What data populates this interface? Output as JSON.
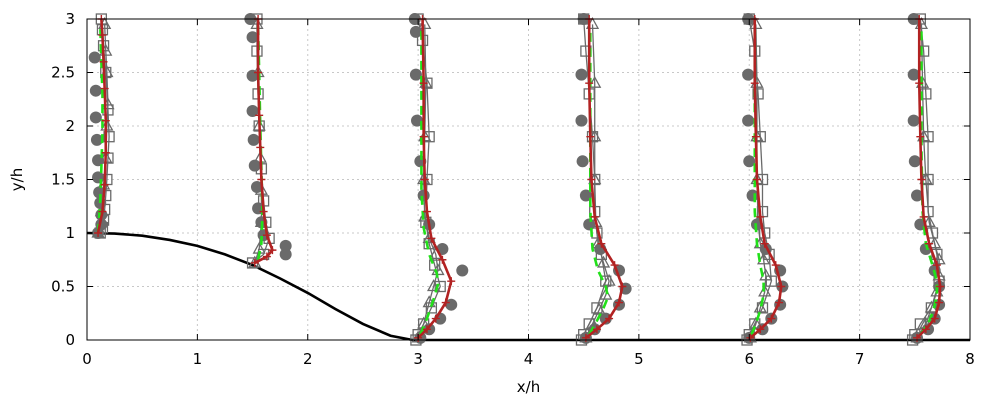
{
  "chart_data": {
    "type": "line",
    "title": "",
    "xlabel": "x/h",
    "ylabel": "y/h",
    "xlim": [
      0,
      8
    ],
    "ylim": [
      0,
      3
    ],
    "xticks": [
      "0",
      "1",
      "2",
      "3",
      "4",
      "5",
      "6",
      "7",
      "8"
    ],
    "yticks": [
      "0",
      "0.5",
      "1",
      "1.5",
      "2",
      "2.5",
      "3"
    ],
    "grid": true,
    "profile_stations_x": [
      0.1,
      1.5,
      3.0,
      4.5,
      6.0,
      7.5
    ],
    "hill_profile": {
      "x": [
        0.0,
        0.25,
        0.5,
        0.75,
        1.0,
        1.25,
        1.5,
        1.75,
        2.0,
        2.25,
        2.5,
        2.75,
        2.95,
        3.2,
        8.0
      ],
      "y": [
        1.0,
        0.995,
        0.975,
        0.935,
        0.88,
        0.8,
        0.7,
        0.575,
        0.44,
        0.29,
        0.15,
        0.04,
        0.0,
        0.0,
        0.0
      ]
    },
    "series": [
      {
        "marker": "open-square",
        "profiles": [
          {
            "x": [
              0.12,
              0.14,
              0.15,
              0.16,
              0.17,
              0.18,
              0.19,
              0.2,
              0.19,
              0.17,
              0.15,
              0.14,
              0.13
            ],
            "y": [
              1.0,
              1.05,
              1.12,
              1.22,
              1.35,
              1.5,
              1.7,
              1.9,
              2.15,
              2.5,
              2.75,
              2.9,
              3.0
            ]
          },
          {
            "x": [
              1.5,
              1.6,
              1.65,
              1.62,
              1.6,
              1.58,
              1.56,
              1.55,
              1.54,
              1.54
            ],
            "y": [
              0.72,
              0.8,
              0.95,
              1.1,
              1.3,
              1.6,
              2.0,
              2.3,
              2.7,
              3.0
            ]
          },
          {
            "x": [
              2.98,
              3.0,
              3.05,
              3.12,
              3.2,
              3.15,
              3.1,
              3.07,
              3.08,
              3.1,
              3.08,
              3.04,
              3.0
            ],
            "y": [
              0.0,
              0.05,
              0.15,
              0.3,
              0.5,
              0.7,
              0.9,
              1.1,
              1.5,
              1.9,
              2.4,
              2.8,
              3.0
            ]
          },
          {
            "x": [
              4.48,
              4.5,
              4.55,
              4.62,
              4.7,
              4.66,
              4.62,
              4.6,
              4.6,
              4.58,
              4.55,
              4.52,
              4.5
            ],
            "y": [
              0.0,
              0.05,
              0.15,
              0.3,
              0.55,
              0.8,
              1.0,
              1.2,
              1.5,
              1.9,
              2.3,
              2.7,
              3.0
            ]
          },
          {
            "x": [
              5.98,
              6.0,
              6.05,
              6.12,
              6.2,
              6.18,
              6.14,
              6.12,
              6.12,
              6.1,
              6.08,
              6.05,
              6.0
            ],
            "y": [
              0.0,
              0.05,
              0.15,
              0.3,
              0.55,
              0.8,
              1.0,
              1.2,
              1.5,
              1.9,
              2.3,
              2.7,
              3.0
            ]
          },
          {
            "x": [
              7.48,
              7.5,
              7.55,
              7.65,
              7.72,
              7.7,
              7.66,
              7.62,
              7.62,
              7.62,
              7.6,
              7.58,
              7.55
            ],
            "y": [
              0.0,
              0.05,
              0.15,
              0.3,
              0.55,
              0.8,
              1.0,
              1.2,
              1.5,
              1.9,
              2.3,
              2.7,
              3.0
            ]
          }
        ]
      },
      {
        "marker": "filled-circle",
        "profiles": [
          {
            "x": [
              0.1,
              0.13,
              0.13,
              0.12,
              0.11,
              0.1,
              0.1,
              0.09,
              0.08,
              0.08,
              0.07
            ],
            "y": [
              1.0,
              1.08,
              1.17,
              1.28,
              1.38,
              1.52,
              1.68,
              1.87,
              2.08,
              2.33,
              2.64
            ]
          },
          {
            "x": [
              1.8,
              1.8,
              1.6,
              1.58,
              1.55,
              1.54,
              1.52,
              1.51,
              1.5,
              1.5,
              1.5,
              1.48
            ],
            "y": [
              0.8,
              0.88,
              0.98,
              1.1,
              1.23,
              1.43,
              1.63,
              1.87,
              2.14,
              2.47,
              2.83,
              3.0
            ]
          },
          {
            "x": [
              3.02,
              3.1,
              3.2,
              3.3,
              3.4,
              3.22,
              3.1,
              3.05,
              3.02,
              2.99,
              2.98,
              2.98,
              2.97
            ],
            "y": [
              0.02,
              0.1,
              0.2,
              0.33,
              0.65,
              0.85,
              1.08,
              1.35,
              1.67,
              2.05,
              2.48,
              2.88,
              3.0
            ]
          },
          {
            "x": [
              4.52,
              4.6,
              4.7,
              4.82,
              4.88,
              4.82,
              4.65,
              4.55,
              4.52,
              4.49,
              4.48,
              4.48,
              4.5
            ],
            "y": [
              0.02,
              0.1,
              0.2,
              0.33,
              0.48,
              0.65,
              0.85,
              1.08,
              1.35,
              1.67,
              2.05,
              2.48,
              3.0
            ]
          },
          {
            "x": [
              6.0,
              6.12,
              6.2,
              6.28,
              6.3,
              6.28,
              6.15,
              6.07,
              6.03,
              6.0,
              5.99,
              5.99,
              5.99
            ],
            "y": [
              0.02,
              0.1,
              0.2,
              0.33,
              0.5,
              0.65,
              0.85,
              1.08,
              1.35,
              1.67,
              2.05,
              2.48,
              3.0
            ]
          },
          {
            "x": [
              7.52,
              7.62,
              7.68,
              7.72,
              7.72,
              7.68,
              7.6,
              7.55,
              7.52,
              7.5,
              7.49,
              7.49,
              7.49
            ],
            "y": [
              0.02,
              0.1,
              0.2,
              0.33,
              0.5,
              0.65,
              0.85,
              1.08,
              1.35,
              1.67,
              2.05,
              2.48,
              3.0
            ]
          }
        ]
      },
      {
        "marker": "open-triangle",
        "profiles": [
          {
            "x": [
              0.1,
              0.13,
              0.15,
              0.17,
              0.18,
              0.19,
              0.18,
              0.17,
              0.16
            ],
            "y": [
              1.0,
              1.2,
              1.45,
              1.7,
              2.0,
              2.2,
              2.5,
              2.7,
              2.95
            ]
          },
          {
            "x": [
              1.52,
              1.56,
              1.58,
              1.58,
              1.57,
              1.56,
              1.55,
              1.54
            ],
            "y": [
              0.72,
              0.85,
              1.1,
              1.4,
              1.7,
              2.0,
              2.5,
              2.95
            ]
          },
          {
            "x": [
              3.0,
              3.05,
              3.1,
              3.14,
              3.18,
              3.16,
              3.1,
              3.06,
              3.05,
              3.06,
              3.07,
              3.06
            ],
            "y": [
              0.02,
              0.15,
              0.35,
              0.5,
              0.65,
              0.8,
              0.95,
              1.15,
              1.5,
              1.9,
              2.4,
              2.95
            ]
          },
          {
            "x": [
              4.52,
              4.58,
              4.64,
              4.7,
              4.73,
              4.68,
              4.63,
              4.61,
              4.6,
              4.6,
              4.6,
              4.58
            ],
            "y": [
              0.02,
              0.15,
              0.28,
              0.42,
              0.55,
              0.72,
              0.9,
              1.1,
              1.5,
              1.9,
              2.4,
              2.95
            ]
          },
          {
            "x": [
              6.01,
              6.06,
              6.1,
              6.14,
              6.15,
              6.13,
              6.1,
              6.08,
              6.07,
              6.07,
              6.07,
              6.06
            ],
            "y": [
              0.02,
              0.15,
              0.3,
              0.45,
              0.6,
              0.75,
              0.9,
              1.1,
              1.5,
              1.9,
              2.4,
              2.95
            ]
          },
          {
            "x": [
              7.52,
              7.6,
              7.65,
              7.7,
              7.72,
              7.72,
              7.68,
              7.63,
              7.6,
              7.58,
              7.57,
              7.56
            ],
            "y": [
              0.02,
              0.15,
              0.3,
              0.45,
              0.6,
              0.75,
              0.9,
              1.1,
              1.5,
              1.9,
              2.4,
              2.95
            ]
          }
        ]
      },
      {
        "marker": "red-plus-solid",
        "profiles": [
          {
            "x": [
              0.1,
              0.14,
              0.16,
              0.17,
              0.17,
              0.16,
              0.15,
              0.14,
              0.13
            ],
            "y": [
              1.0,
              1.2,
              1.45,
              1.75,
              2.05,
              2.35,
              2.6,
              2.85,
              3.0
            ]
          },
          {
            "x": [
              1.52,
              1.63,
              1.68,
              1.63,
              1.6,
              1.58,
              1.57,
              1.56,
              1.55,
              1.55
            ],
            "y": [
              0.72,
              0.78,
              0.84,
              0.98,
              1.2,
              1.5,
              1.8,
              2.1,
              2.5,
              3.0
            ]
          },
          {
            "x": [
              3.0,
              3.08,
              3.16,
              3.25,
              3.3,
              3.22,
              3.12,
              3.08,
              3.06,
              3.05,
              3.05,
              3.04
            ],
            "y": [
              0.02,
              0.1,
              0.2,
              0.35,
              0.55,
              0.75,
              0.95,
              1.2,
              1.5,
              1.9,
              2.4,
              3.0
            ]
          },
          {
            "x": [
              4.52,
              4.62,
              4.73,
              4.82,
              4.85,
              4.78,
              4.66,
              4.6,
              4.57,
              4.56,
              4.55,
              4.55
            ],
            "y": [
              0.02,
              0.1,
              0.2,
              0.35,
              0.5,
              0.7,
              0.9,
              1.15,
              1.5,
              1.9,
              2.4,
              3.0
            ]
          },
          {
            "x": [
              6.01,
              6.1,
              6.2,
              6.27,
              6.29,
              6.24,
              6.14,
              6.1,
              6.07,
              6.06,
              6.05,
              6.05
            ],
            "y": [
              0.02,
              0.1,
              0.2,
              0.35,
              0.5,
              0.7,
              0.9,
              1.15,
              1.5,
              1.9,
              2.4,
              3.0
            ]
          },
          {
            "x": [
              7.52,
              7.6,
              7.68,
              7.72,
              7.73,
              7.7,
              7.63,
              7.58,
              7.56,
              7.55,
              7.54,
              7.54
            ],
            "y": [
              0.02,
              0.1,
              0.2,
              0.35,
              0.5,
              0.7,
              0.9,
              1.15,
              1.5,
              1.9,
              2.4,
              3.0
            ]
          }
        ]
      },
      {
        "marker": "green-dashed",
        "profiles": [
          {
            "x": [
              0.1,
              0.12,
              0.13,
              0.14,
              0.14,
              0.13,
              0.12
            ],
            "y": [
              1.0,
              1.3,
              1.6,
              1.95,
              2.3,
              2.6,
              2.95
            ]
          },
          {
            "x": [
              1.55,
              1.58,
              1.59,
              1.58,
              1.57,
              1.56,
              1.55
            ],
            "y": [
              0.75,
              0.9,
              1.2,
              1.6,
              2.0,
              2.5,
              2.95
            ]
          },
          {
            "x": [
              3.02,
              3.08,
              3.14,
              3.18,
              3.17,
              3.1,
              3.05,
              3.03,
              3.03,
              3.03
            ],
            "y": [
              0.05,
              0.2,
              0.38,
              0.52,
              0.62,
              0.8,
              1.05,
              1.4,
              1.9,
              2.9
            ]
          },
          {
            "x": [
              4.55,
              4.62,
              4.68,
              4.72,
              4.7,
              4.63,
              4.58,
              4.56,
              4.56,
              4.56
            ],
            "y": [
              0.05,
              0.18,
              0.3,
              0.4,
              0.5,
              0.65,
              0.85,
              1.2,
              1.8,
              2.9
            ]
          },
          {
            "x": [
              6.02,
              6.06,
              6.1,
              6.13,
              6.13,
              6.1,
              6.07,
              6.05,
              6.05,
              6.05
            ],
            "y": [
              0.05,
              0.15,
              0.28,
              0.42,
              0.55,
              0.7,
              0.9,
              1.2,
              1.8,
              2.9
            ]
          },
          {
            "x": [
              7.55,
              7.62,
              7.67,
              7.7,
              7.7,
              7.66,
              7.6,
              7.57,
              7.56,
              7.56
            ],
            "y": [
              0.05,
              0.15,
              0.28,
              0.42,
              0.55,
              0.7,
              0.9,
              1.2,
              1.8,
              2.9
            ]
          }
        ]
      }
    ]
  },
  "colors": {
    "marker_gray": "#6a6a6a",
    "red_line": "#b22222",
    "green_line": "#22e01a",
    "hill": "#000000",
    "grid": "#c8c8c8"
  }
}
